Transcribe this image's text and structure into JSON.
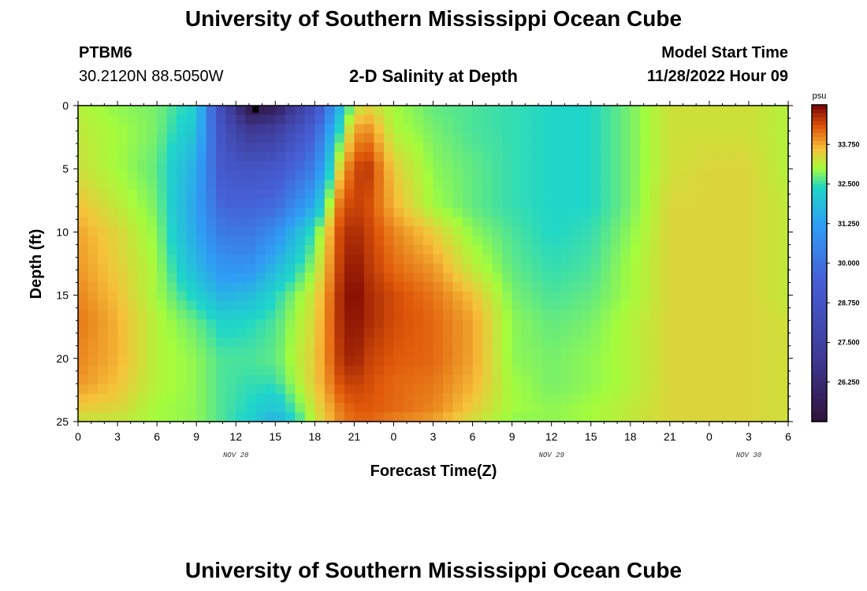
{
  "header": {
    "title_top": "University of Southern Mississippi Ocean Cube",
    "title_bottom": "University of Southern Mississippi Ocean Cube",
    "station_id": "PTBM6",
    "station_coords": "30.2120N  88.5050W",
    "plot_title": "2-D Salinity at Depth",
    "model_start_label": "Model Start Time",
    "model_start_value": "11/28/2022 Hour 09"
  },
  "colors": {
    "frame": "#000000",
    "marker": "#000000"
  },
  "chart_data": {
    "type": "heatmap",
    "title": "2-D Salinity at Depth",
    "xlabel": "Forecast Time(Z)",
    "ylabel": "Depth (ft)",
    "x_range_hours": [
      0,
      54
    ],
    "y_range_ft": [
      0,
      25
    ],
    "y_inverted": true,
    "x_tick_labels": [
      "0",
      "3",
      "6",
      "9",
      "12",
      "15",
      "18",
      "21",
      "0",
      "3",
      "6",
      "9",
      "12",
      "15",
      "18",
      "21",
      "0",
      "3",
      "6"
    ],
    "y_tick_labels": [
      "0",
      "5",
      "10",
      "15",
      "20",
      "25"
    ],
    "y_tick_values": [
      0,
      5,
      10,
      15,
      20,
      25
    ],
    "date_labels": [
      {
        "text": "NOV 28",
        "hour": 12
      },
      {
        "text": "NOV 29",
        "hour": 36
      },
      {
        "text": "NOV 30",
        "hour": 51
      }
    ],
    "colorbar": {
      "unit": "psu",
      "min": 25.0,
      "max": 35.0,
      "tick_values": [
        33.75,
        32.5,
        31.25,
        30.0,
        28.75,
        27.5,
        26.25
      ],
      "tick_labels": [
        "33.750",
        "32.500",
        "31.250",
        "30.000",
        "28.750",
        "27.500",
        "26.250"
      ],
      "stops": [
        {
          "v": 25.0,
          "c": "#30123b"
        },
        {
          "v": 27.0,
          "c": "#3e3994"
        },
        {
          "v": 29.5,
          "c": "#4660d7"
        },
        {
          "v": 31.2,
          "c": "#2f9df5"
        },
        {
          "v": 32.4,
          "c": "#1fd6c8"
        },
        {
          "v": 33.0,
          "c": "#a4fc3c"
        },
        {
          "v": 33.6,
          "c": "#f6c23a"
        },
        {
          "v": 34.3,
          "c": "#e0580a"
        },
        {
          "v": 35.0,
          "c": "#7a0403"
        }
      ]
    },
    "grid_hours": [
      0,
      3,
      6,
      9,
      11,
      13,
      15,
      18,
      20,
      21,
      22,
      24,
      27,
      30,
      33,
      36,
      39,
      42,
      45,
      48,
      51,
      54
    ],
    "grid_depths_ft": [
      0,
      2,
      5,
      8,
      10,
      13,
      15,
      17,
      20,
      22,
      24,
      25
    ],
    "grid_values_psu": [
      [
        33.1,
        32.9,
        32.8,
        32.3,
        28.0,
        25.2,
        25.5,
        28.5,
        31.8,
        33.1,
        33.4,
        33.0,
        32.7,
        32.6,
        32.5,
        32.4,
        32.4,
        32.8,
        33.3,
        33.3,
        33.3,
        33.1
      ],
      [
        33.2,
        33.0,
        32.8,
        32.0,
        28.6,
        27.0,
        27.4,
        29.5,
        32.6,
        33.8,
        34.0,
        33.1,
        32.8,
        32.6,
        32.5,
        32.4,
        32.4,
        32.8,
        33.3,
        33.3,
        33.3,
        33.1
      ],
      [
        33.3,
        33.0,
        32.7,
        31.5,
        29.0,
        28.8,
        29.0,
        30.4,
        33.6,
        34.4,
        34.6,
        33.5,
        32.9,
        32.7,
        32.5,
        32.4,
        32.4,
        32.8,
        33.3,
        33.4,
        33.4,
        33.1
      ],
      [
        33.6,
        33.2,
        32.8,
        31.3,
        29.6,
        29.6,
        29.8,
        31.6,
        34.3,
        34.5,
        34.4,
        33.7,
        33.0,
        32.7,
        32.5,
        32.4,
        32.4,
        32.8,
        33.4,
        33.4,
        33.4,
        33.2
      ],
      [
        33.8,
        33.4,
        32.9,
        31.4,
        30.2,
        30.1,
        30.8,
        32.6,
        34.5,
        34.7,
        34.5,
        34.0,
        33.5,
        32.9,
        32.6,
        32.4,
        32.5,
        32.9,
        33.4,
        33.4,
        33.4,
        33.2
      ],
      [
        33.9,
        33.5,
        33.0,
        31.8,
        31.0,
        31.0,
        31.8,
        33.0,
        34.6,
        34.9,
        34.6,
        34.2,
        33.9,
        33.2,
        32.7,
        32.5,
        32.6,
        33.0,
        33.4,
        33.4,
        33.4,
        33.2
      ],
      [
        34.0,
        33.6,
        33.0,
        32.3,
        31.6,
        31.8,
        32.4,
        33.3,
        34.7,
        35.0,
        34.7,
        34.4,
        34.1,
        33.6,
        32.8,
        32.6,
        32.7,
        33.0,
        33.4,
        33.4,
        33.4,
        33.2
      ],
      [
        34.1,
        33.7,
        33.1,
        32.7,
        32.3,
        32.4,
        32.6,
        33.4,
        34.7,
        34.9,
        34.7,
        34.4,
        34.2,
        33.8,
        32.9,
        32.7,
        32.8,
        33.1,
        33.4,
        33.4,
        33.4,
        33.3
      ],
      [
        34.0,
        33.7,
        33.1,
        32.9,
        32.6,
        32.6,
        32.7,
        33.5,
        34.6,
        34.8,
        34.5,
        34.3,
        34.2,
        33.8,
        32.9,
        32.8,
        32.9,
        33.1,
        33.4,
        33.4,
        33.4,
        33.3
      ],
      [
        33.9,
        33.6,
        33.1,
        32.9,
        32.6,
        32.5,
        32.5,
        33.5,
        34.4,
        34.5,
        34.4,
        34.2,
        34.1,
        33.7,
        33.0,
        32.8,
        32.9,
        33.1,
        33.4,
        33.4,
        33.4,
        33.3
      ],
      [
        33.5,
        33.4,
        33.0,
        32.9,
        32.6,
        32.4,
        32.0,
        33.3,
        34.1,
        34.3,
        34.3,
        34.2,
        34.0,
        33.5,
        33.0,
        32.9,
        33.0,
        33.2,
        33.4,
        33.4,
        33.4,
        33.3
      ],
      [
        33.2,
        33.2,
        33.0,
        32.9,
        32.6,
        32.3,
        31.5,
        33.2,
        34.0,
        34.2,
        34.2,
        34.0,
        33.8,
        33.3,
        32.9,
        32.9,
        33.0,
        33.2,
        33.4,
        33.4,
        33.4,
        33.3
      ]
    ],
    "marker": {
      "hour": 13.5,
      "depth_ft": 0.25
    }
  },
  "chart_text": {
    "xlabel": "Forecast Time(Z)",
    "ylabel": "Depth (ft)"
  }
}
